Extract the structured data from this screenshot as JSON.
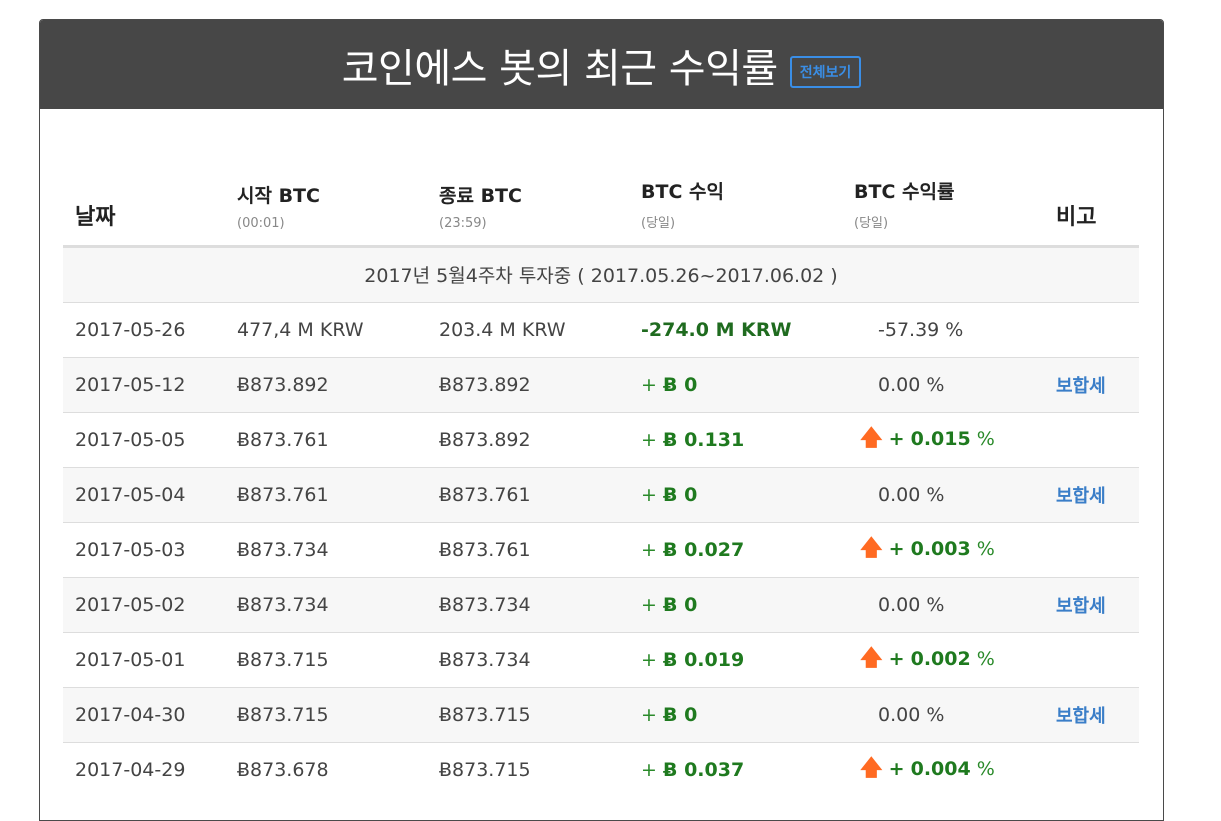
{
  "header": {
    "title": "코인에스 봇의 최근 수익률",
    "view_all_label": "전체보기"
  },
  "columns": {
    "date": "날짜",
    "start_btc": "시작 BTC",
    "start_btc_sub": "(00:01)",
    "end_btc": "종료 BTC",
    "end_btc_sub": "(23:59)",
    "btc_profit": "BTC 수익",
    "btc_profit_sub": "(당일)",
    "btc_rate": "BTC 수익률",
    "btc_rate_sub": "(당일)",
    "note": "비고"
  },
  "week_label": "2017년 5월4주차 투자중 ( 2017.05.26~2017.06.02 )",
  "rows": [
    {
      "date": "2017-05-26",
      "start": "477,4 M KRW",
      "end": "203.4 M KRW",
      "profit": "-274.0 M KRW",
      "rate": "-57.39 %",
      "note": ""
    },
    {
      "date": "2017-05-12",
      "start": "Ƀ873.892",
      "end": "Ƀ873.892",
      "profit_sign": "+",
      "profit": "Ƀ 0",
      "rate": "0.00 %",
      "note": "보합세"
    },
    {
      "date": "2017-05-05",
      "start": "Ƀ873.761",
      "end": "Ƀ873.892",
      "profit_sign": "+",
      "profit": "Ƀ 0.131",
      "rate_sign": "+",
      "rate_value": "0.015",
      "rate_pct": "%",
      "note": ""
    },
    {
      "date": "2017-05-04",
      "start": "Ƀ873.761",
      "end": "Ƀ873.761",
      "profit_sign": "+",
      "profit": "Ƀ 0",
      "rate": "0.00 %",
      "note": "보합세"
    },
    {
      "date": "2017-05-03",
      "start": "Ƀ873.734",
      "end": "Ƀ873.761",
      "profit_sign": "+",
      "profit": "Ƀ 0.027",
      "rate_sign": "+",
      "rate_value": "0.003",
      "rate_pct": "%",
      "note": ""
    },
    {
      "date": "2017-05-02",
      "start": "Ƀ873.734",
      "end": "Ƀ873.734",
      "profit_sign": "+",
      "profit": "Ƀ 0",
      "rate": "0.00 %",
      "note": "보합세"
    },
    {
      "date": "2017-05-01",
      "start": "Ƀ873.715",
      "end": "Ƀ873.734",
      "profit_sign": "+",
      "profit": "Ƀ 0.019",
      "rate_sign": "+",
      "rate_value": "0.002",
      "rate_pct": "%",
      "note": ""
    },
    {
      "date": "2017-04-30",
      "start": "Ƀ873.715",
      "end": "Ƀ873.715",
      "profit_sign": "+",
      "profit": "Ƀ 0",
      "rate": "0.00 %",
      "note": "보합세"
    },
    {
      "date": "2017-04-29",
      "start": "Ƀ873.678",
      "end": "Ƀ873.715",
      "profit_sign": "+",
      "profit": "Ƀ 0.037",
      "rate_sign": "+",
      "rate_value": "0.004",
      "rate_pct": "%",
      "note": ""
    }
  ],
  "icons": {
    "up": "up-arrow-icon"
  },
  "colors": {
    "header_bg": "#474747",
    "accent": "#3a8ee6",
    "profit_green": "#1f7a1f",
    "arrow_orange": "#ff6a22",
    "note_blue": "#3a7ec8"
  }
}
